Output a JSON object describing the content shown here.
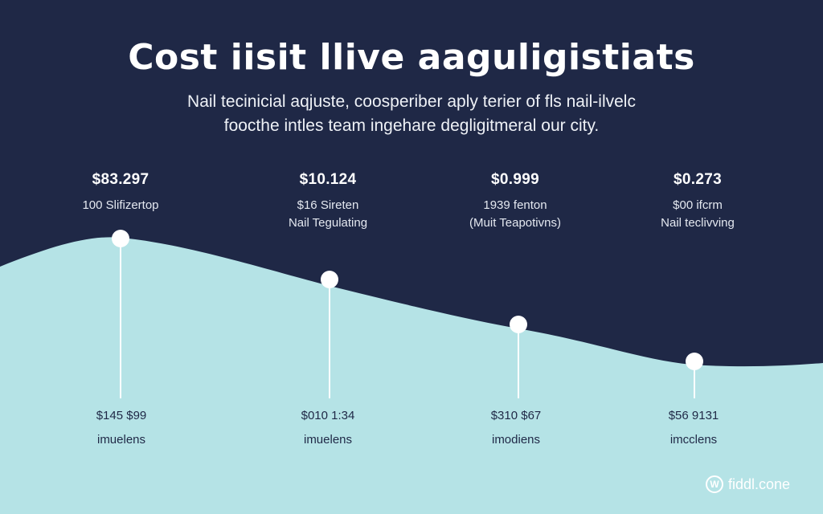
{
  "title": "Cost iisit llive aaguligistiats",
  "subtitle": {
    "line1": "Nail tecinicial aqjuste, coosperiber aply terier of fls nail-ilvelc",
    "line2": "foocthe intles team ingehare degligitmeral our city."
  },
  "colors": {
    "background": "#1f2846",
    "wave": "#b5e3e6",
    "marker": "#ffffff",
    "bottom_text": "#1f2846"
  },
  "columns": [
    {
      "top_price": "$83.297",
      "top_line1": "100 Slifizertop",
      "top_line2": "",
      "bottom_price": "$145 $99",
      "bottom_caption": "imuelens"
    },
    {
      "top_price": "$10.124",
      "top_line1": "$16 Sireten",
      "top_line2": "Nail Tegulating",
      "bottom_price": "$010 1:34",
      "bottom_caption": "imuelens"
    },
    {
      "top_price": "$0.999",
      "top_line1": "1939 fenton",
      "top_line2": "(Muit Teapotivns)",
      "bottom_price": "$310 $67",
      "bottom_caption": "imodiens"
    },
    {
      "top_price": "$0.273",
      "top_line1": "$00 ifcrm",
      "top_line2": "Nail teclivving",
      "bottom_price": "$56 9131",
      "bottom_caption": "imcclens"
    }
  ],
  "logo": {
    "icon": "fiddl-logo-icon",
    "mark": "W",
    "text": "fiddl.cone"
  }
}
